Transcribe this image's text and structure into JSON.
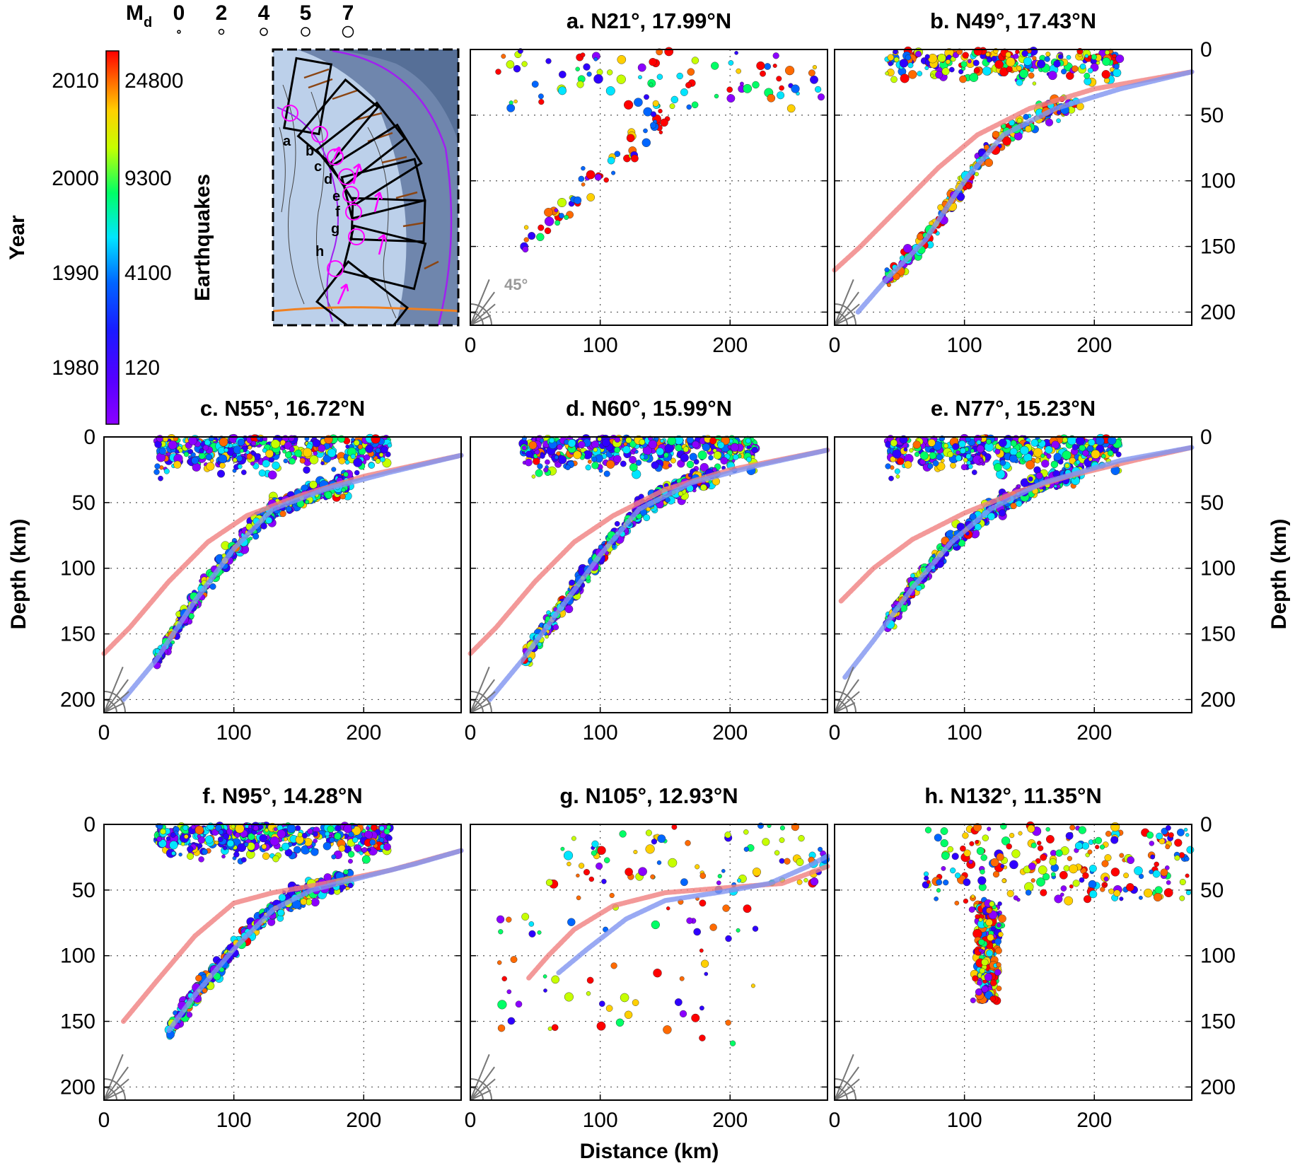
{
  "chart_data": {
    "type": "scatter",
    "x_axis": {
      "label": "Distance (km)",
      "range": [
        0,
        275
      ],
      "ticks": [
        0,
        100,
        200
      ]
    },
    "y_axis": {
      "label": "Depth (km)",
      "range": [
        0,
        210
      ],
      "ticks": [
        0,
        50,
        100,
        150,
        200
      ],
      "reversed": true
    },
    "grid": "dotted",
    "colorbar": {
      "left_label": "Year",
      "right_label": "Earthquakes",
      "year_ticks": [
        1980,
        1990,
        2000,
        2010
      ],
      "count_ticks": [
        "120",
        "4100",
        "9300",
        "24800"
      ],
      "colormap": [
        "#8b00ff",
        "#2f00ff",
        "#0066ff",
        "#00e5ff",
        "#00ff66",
        "#c6ff00",
        "#ffd000",
        "#ff6a00",
        "#ff0000"
      ]
    },
    "magnitude_legend": {
      "label": "M",
      "subscript": "d",
      "values": [
        "0",
        "2",
        "4",
        "5",
        "7"
      ]
    },
    "angle_annotation": "45°",
    "map_inset": {
      "section_labels": [
        "a",
        "b",
        "c",
        "d",
        "e",
        "f",
        "g",
        "h"
      ]
    },
    "slab_model_colors": {
      "red_curve": "#f08080",
      "blue_curve": "#7f93f0"
    },
    "panels": [
      {
        "id": "a",
        "title": "a. N21°, 17.99°N",
        "seismicity": "sparse",
        "curves": null
      },
      {
        "id": "b",
        "title": "b. N49°, 17.43°N",
        "seismicity": "moderate",
        "curves": {
          "red": [
            [
              0,
              168
            ],
            [
              20,
              150
            ],
            [
              50,
              120
            ],
            [
              80,
              90
            ],
            [
              110,
              65
            ],
            [
              150,
              45
            ],
            [
              200,
              30
            ],
            [
              275,
              17
            ]
          ],
          "blue": [
            [
              18,
              200
            ],
            [
              40,
              175
            ],
            [
              70,
              145
            ],
            [
              100,
              100
            ],
            [
              130,
              65
            ],
            [
              170,
              45
            ],
            [
              220,
              30
            ],
            [
              275,
              17
            ]
          ]
        }
      },
      {
        "id": "c",
        "title": "c. N55°, 16.72°N",
        "seismicity": "dense",
        "curves": {
          "red": [
            [
              0,
              165
            ],
            [
              20,
              145
            ],
            [
              50,
              110
            ],
            [
              80,
              80
            ],
            [
              110,
              60
            ],
            [
              150,
              45
            ],
            [
              200,
              30
            ],
            [
              275,
              14
            ]
          ],
          "blue": [
            [
              15,
              200
            ],
            [
              40,
              170
            ],
            [
              70,
              125
            ],
            [
              100,
              85
            ],
            [
              130,
              55
            ],
            [
              170,
              40
            ],
            [
              220,
              27
            ],
            [
              275,
              14
            ]
          ]
        }
      },
      {
        "id": "d",
        "title": "d. N60°, 15.99°N",
        "seismicity": "dense",
        "curves": {
          "red": [
            [
              0,
              165
            ],
            [
              20,
              145
            ],
            [
              50,
              110
            ],
            [
              80,
              80
            ],
            [
              110,
              60
            ],
            [
              150,
              40
            ],
            [
              200,
              25
            ],
            [
              275,
              10
            ]
          ],
          "blue": [
            [
              15,
              200
            ],
            [
              40,
              170
            ],
            [
              70,
              130
            ],
            [
              100,
              90
            ],
            [
              130,
              55
            ],
            [
              170,
              35
            ],
            [
              220,
              22
            ],
            [
              275,
              10
            ]
          ]
        }
      },
      {
        "id": "e",
        "title": "e. N77°, 15.23°N",
        "seismicity": "dense",
        "curves": {
          "red": [
            [
              5,
              125
            ],
            [
              30,
              100
            ],
            [
              60,
              78
            ],
            [
              100,
              58
            ],
            [
              140,
              42
            ],
            [
              180,
              30
            ],
            [
              230,
              18
            ],
            [
              275,
              8
            ]
          ],
          "blue": [
            [
              8,
              183
            ],
            [
              30,
              155
            ],
            [
              60,
              115
            ],
            [
              90,
              80
            ],
            [
              120,
              55
            ],
            [
              160,
              35
            ],
            [
              220,
              18
            ],
            [
              275,
              8
            ]
          ]
        }
      },
      {
        "id": "f",
        "title": "f. N95°, 14.28°N",
        "seismicity": "dense",
        "curves": {
          "red": [
            [
              15,
              150
            ],
            [
              40,
              120
            ],
            [
              70,
              85
            ],
            [
              100,
              60
            ],
            [
              130,
              52
            ],
            [
              170,
              45
            ],
            [
              220,
              35
            ],
            [
              275,
              20
            ]
          ],
          "blue": [
            [
              50,
              157
            ],
            [
              70,
              130
            ],
            [
              100,
              95
            ],
            [
              130,
              65
            ],
            [
              160,
              50
            ],
            [
              200,
              40
            ],
            [
              240,
              30
            ],
            [
              275,
              20
            ]
          ]
        }
      },
      {
        "id": "g",
        "title": "g. N105°, 12.93°N",
        "seismicity": "sparse",
        "curves": {
          "red": [
            [
              45,
              117
            ],
            [
              60,
              100
            ],
            [
              80,
              80
            ],
            [
              110,
              62
            ],
            [
              150,
              52
            ],
            [
              200,
              48
            ],
            [
              240,
              45
            ],
            [
              275,
              32
            ]
          ],
          "blue": [
            [
              68,
              113
            ],
            [
              90,
              95
            ],
            [
              120,
              72
            ],
            [
              150,
              58
            ],
            [
              190,
              52
            ],
            [
              230,
              45
            ],
            [
              260,
              32
            ],
            [
              275,
              24
            ]
          ]
        }
      },
      {
        "id": "h",
        "title": "h. N132°, 11.35°N",
        "seismicity": "moderate",
        "curves": null
      }
    ]
  }
}
